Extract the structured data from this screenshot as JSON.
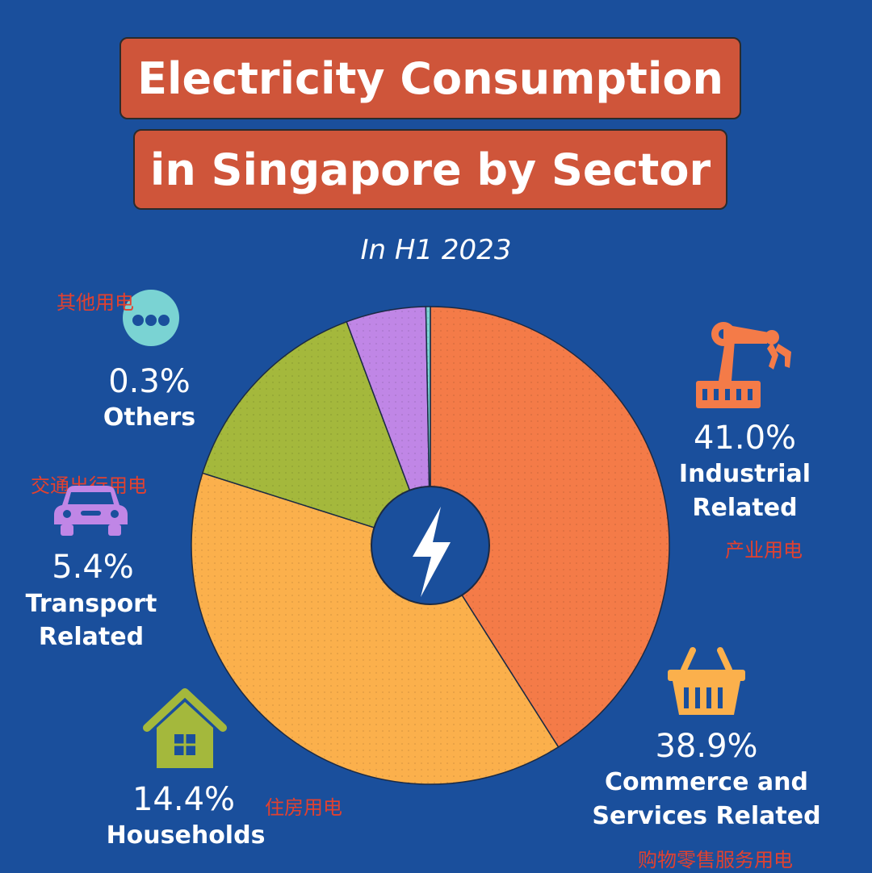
{
  "title_line1": "Electricity Consumption",
  "title_line2": "in Singapore by Sector",
  "subtitle": "In H1 2023",
  "chart_data": {
    "type": "pie",
    "title": "Electricity Consumption in Singapore by Sector",
    "subtitle": "In H1 2023",
    "slices": [
      {
        "name": "Industrial Related",
        "value": 41.0,
        "label": "41.0%",
        "color": "#f47b48",
        "cn": "产业用电"
      },
      {
        "name": "Commerce and Services Related",
        "value": 38.9,
        "label": "38.9%",
        "color": "#fbb04c",
        "cn": "购物零售服务用电"
      },
      {
        "name": "Households",
        "value": 14.4,
        "label": "14.4%",
        "color": "#a4b83c",
        "cn": "住房用电"
      },
      {
        "name": "Transport Related",
        "value": 5.4,
        "label": "5.4%",
        "color": "#c086e6",
        "cn": "交通出行用电"
      },
      {
        "name": "Others",
        "value": 0.3,
        "label": "0.3%",
        "color": "#7ad3d3",
        "cn": "其他用电"
      }
    ]
  },
  "labels": {
    "industrial": {
      "pct": "41.0%",
      "line1": "Industrial",
      "line2": "Related",
      "cn": "产业用电"
    },
    "commerce": {
      "pct": "38.9%",
      "line1": "Commerce and",
      "line2": "Services Related",
      "cn": "购物零售服务用电"
    },
    "households": {
      "pct": "14.4%",
      "line1": "Households",
      "cn": "住房用电"
    },
    "transport": {
      "pct": "5.4%",
      "line1": "Transport",
      "line2": "Related",
      "cn": "交通出行用电"
    },
    "others": {
      "pct": "0.3%",
      "line1": "Others",
      "cn": "其他用电"
    }
  },
  "icons": {
    "industrial": "robot-arm-icon",
    "commerce": "shopping-basket-icon",
    "households": "house-icon",
    "transport": "car-icon",
    "others": "more-dots-icon",
    "center": "lightning-bolt-icon"
  },
  "colors": {
    "background": "#1a4f9c",
    "title_box": "#cf553a",
    "cn_text": "#e2412f"
  }
}
